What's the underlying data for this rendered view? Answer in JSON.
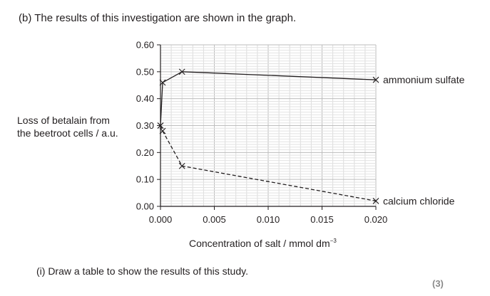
{
  "intro": "(b) The results of this investigation are shown in the graph.",
  "question": "(i) Draw a table to show the results of this study.",
  "marks": "(3)",
  "chart_data": {
    "type": "line",
    "title": "",
    "xlabel": "Concentration of salt / mmol dm",
    "xlabel_exponent": "−3",
    "ylabel_line1": "Loss of betalain from",
    "ylabel_line2": "the beetroot cells / a.u.",
    "xlim": [
      0,
      0.02
    ],
    "ylim": [
      0,
      0.6
    ],
    "xticks": [
      "0.000",
      "0.005",
      "0.010",
      "0.015",
      "0.020"
    ],
    "yticks": [
      "0.00",
      "0.10",
      "0.20",
      "0.30",
      "0.40",
      "0.50",
      "0.60"
    ],
    "grid": true,
    "series": [
      {
        "name": "ammonium sulfate",
        "style": "solid",
        "x": [
          0,
          0.0002,
          0.002,
          0.02
        ],
        "y": [
          0.3,
          0.46,
          0.5,
          0.47
        ]
      },
      {
        "name": "calcium chloride",
        "style": "dashed",
        "x": [
          0,
          0.0002,
          0.002,
          0.02
        ],
        "y": [
          0.3,
          0.28,
          0.15,
          0.02
        ]
      }
    ]
  }
}
